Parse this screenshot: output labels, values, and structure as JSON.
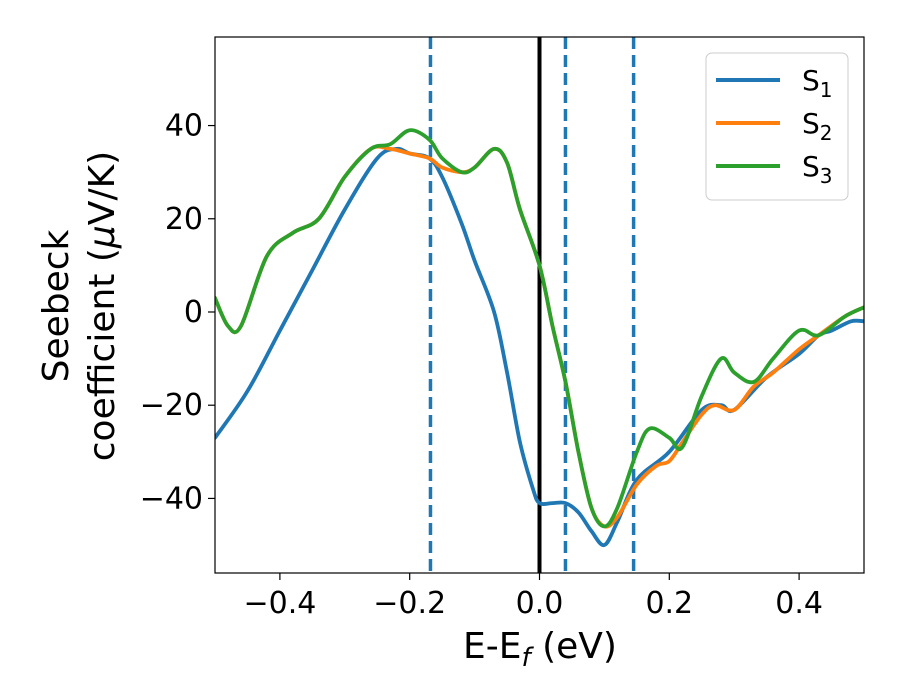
{
  "chart_data": {
    "type": "line",
    "xlabel": "E-E",
    "xlabel_sub": "f",
    "xlabel_unit": " (eV)",
    "ylabel_line1": "Seebeck",
    "ylabel_line2": "coefficient  (",
    "ylabel_mu": "μ",
    "ylabel_unit": "V/K)",
    "xlim": [
      -0.5,
      0.5
    ],
    "ylim": [
      -56,
      59
    ],
    "xticks": [
      -0.4,
      -0.2,
      0.0,
      0.2,
      0.4
    ],
    "xtick_labels": [
      "−0.4",
      "−0.2",
      "0.0",
      "0.2",
      "0.4"
    ],
    "yticks": [
      -40,
      -20,
      0,
      20,
      40
    ],
    "ytick_labels": [
      "−40",
      "−20",
      "0",
      "20",
      "40"
    ],
    "grid": false,
    "legend_position": "top-right",
    "vlines": [
      {
        "x": 0.0,
        "style": "solid",
        "color": "#000000"
      },
      {
        "x": -0.168,
        "style": "dashed",
        "color": "#1f77b4"
      },
      {
        "x": 0.04,
        "style": "dashed",
        "color": "#1f77b4"
      },
      {
        "x": 0.145,
        "style": "dashed",
        "color": "#1f77b4"
      }
    ],
    "series": [
      {
        "name": "S",
        "sub": "1",
        "color": "#1f77b4",
        "x": [
          -0.5,
          -0.45,
          -0.4,
          -0.35,
          -0.3,
          -0.25,
          -0.22,
          -0.2,
          -0.17,
          -0.15,
          -0.12,
          -0.1,
          -0.07,
          -0.05,
          -0.03,
          -0.01,
          0.0,
          0.02,
          0.04,
          0.06,
          0.08,
          0.1,
          0.12,
          0.15,
          0.2,
          0.25,
          0.28,
          0.3,
          0.35,
          0.4,
          0.43,
          0.45,
          0.48,
          0.5
        ],
        "y": [
          -27,
          -17,
          -4,
          9,
          22,
          33,
          35,
          34,
          33,
          29,
          19,
          11,
          0,
          -13,
          -28,
          -38,
          -41,
          -41,
          -41,
          -43,
          -47,
          -50,
          -45,
          -36,
          -30,
          -21,
          -20,
          -21,
          -14,
          -9,
          -5,
          -4,
          -2,
          -2
        ]
      },
      {
        "name": "S",
        "sub": "2",
        "color": "#ff7f0e",
        "x": [
          -0.5,
          -0.48,
          -0.46,
          -0.42,
          -0.38,
          -0.34,
          -0.3,
          -0.26,
          -0.23,
          -0.2,
          -0.17,
          -0.15,
          -0.12,
          -0.1,
          -0.07,
          -0.05,
          -0.03,
          0.0,
          0.02,
          0.04,
          0.06,
          0.08,
          0.1,
          0.12,
          0.15,
          0.18,
          0.2,
          0.22,
          0.25,
          0.27,
          0.3,
          0.33,
          0.36,
          0.4,
          0.43,
          0.47,
          0.5
        ],
        "y": [
          3,
          -3,
          -3,
          12,
          17,
          20,
          29,
          35,
          35,
          34,
          33,
          31,
          30,
          31,
          35,
          32,
          22,
          10,
          -3,
          -15,
          -30,
          -42,
          -46,
          -44,
          -37,
          -33,
          -32,
          -28,
          -22,
          -20,
          -21,
          -16,
          -13,
          -8,
          -5,
          -1,
          1
        ]
      },
      {
        "name": "S",
        "sub": "3",
        "color": "#2ca02c",
        "x": [
          -0.5,
          -0.48,
          -0.46,
          -0.42,
          -0.38,
          -0.34,
          -0.3,
          -0.26,
          -0.23,
          -0.2,
          -0.17,
          -0.15,
          -0.12,
          -0.1,
          -0.07,
          -0.05,
          -0.03,
          0.0,
          0.02,
          0.04,
          0.06,
          0.08,
          0.1,
          0.12,
          0.15,
          0.17,
          0.2,
          0.22,
          0.25,
          0.28,
          0.3,
          0.33,
          0.36,
          0.4,
          0.43,
          0.47,
          0.5
        ],
        "y": [
          3,
          -3,
          -3,
          12,
          17,
          20,
          29,
          35,
          36,
          39,
          37,
          33,
          30,
          31,
          35,
          32,
          22,
          10,
          -3,
          -15,
          -30,
          -42,
          -46,
          -42,
          -30,
          -25,
          -27,
          -29,
          -18,
          -10,
          -13,
          -15,
          -10,
          -4,
          -5,
          -1,
          1
        ]
      }
    ]
  }
}
